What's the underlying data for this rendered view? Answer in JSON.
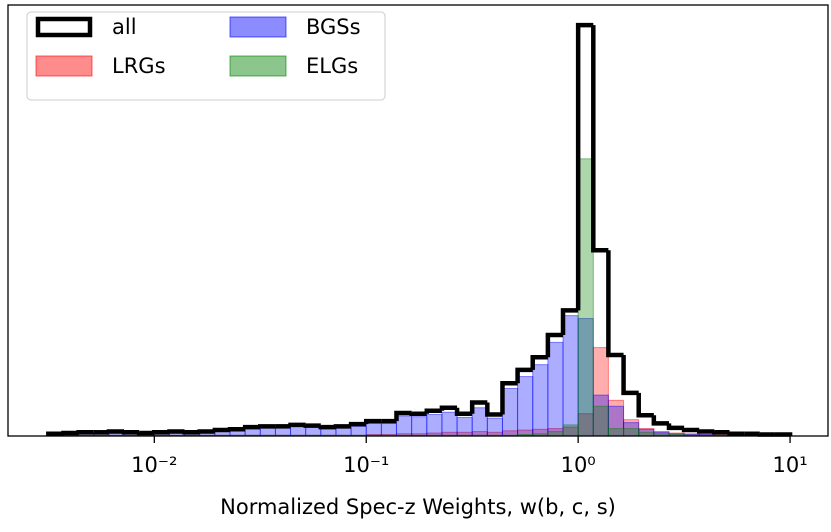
{
  "chart_data": {
    "type": "histogram",
    "log_x": true,
    "xlabel": "Normalized Spec-z Weights, w(b, c, s)",
    "xlim": [
      0.00204,
      15.1
    ],
    "ylim": [
      0,
      5.8
    ],
    "xticks": [
      {
        "value": 0.01,
        "label": "10⁻²"
      },
      {
        "value": 0.1,
        "label": "10⁻¹"
      },
      {
        "value": 1,
        "label": "10⁰"
      },
      {
        "value": 10,
        "label": "10¹"
      }
    ],
    "legend": "upper left",
    "bins": [
      0.003162,
      0.003728,
      0.004394,
      0.005179,
      0.006105,
      0.007197,
      0.008483,
      0.01,
      0.01179,
      0.01389,
      0.01638,
      0.01931,
      0.02276,
      0.02683,
      0.03162,
      0.03728,
      0.04394,
      0.05179,
      0.06105,
      0.07197,
      0.08483,
      0.1,
      0.1179,
      0.1389,
      0.1638,
      0.1931,
      0.2276,
      0.2683,
      0.3162,
      0.3728,
      0.4394,
      0.5179,
      0.6105,
      0.7197,
      0.8483,
      1,
      1.179,
      1.389,
      1.638,
      1.931,
      2.276,
      2.683,
      3.162,
      3.728,
      4.394,
      5.179,
      6.105,
      7.197,
      8.483,
      10
    ],
    "series": [
      {
        "name": "all",
        "color": "#000000",
        "filled": false,
        "values": [
          0.03,
          0.04,
          0.05,
          0.05,
          0.06,
          0.05,
          0.04,
          0.05,
          0.06,
          0.05,
          0.06,
          0.08,
          0.09,
          0.12,
          0.13,
          0.13,
          0.15,
          0.14,
          0.12,
          0.13,
          0.16,
          0.2,
          0.2,
          0.31,
          0.3,
          0.34,
          0.38,
          0.3,
          0.45,
          0.29,
          0.71,
          0.89,
          1.06,
          1.36,
          1.69,
          5.53,
          2.5,
          1.09,
          0.58,
          0.28,
          0.17,
          0.11,
          0.08,
          0.06,
          0.05,
          0.03,
          0.03,
          0.02,
          0.02
        ]
      },
      {
        "name": "LRGs",
        "color": "#ff0000",
        "filled": true,
        "values": [
          0.01,
          0.01,
          0.01,
          0.01,
          0.01,
          0.01,
          0.01,
          0.01,
          0.01,
          0.01,
          0.01,
          0.01,
          0.01,
          0.01,
          0.01,
          0.01,
          0.01,
          0.01,
          0.01,
          0.01,
          0.01,
          0.02,
          0.02,
          0.03,
          0.03,
          0.04,
          0.05,
          0.05,
          0.06,
          0.05,
          0.07,
          0.08,
          0.09,
          0.1,
          0.12,
          0.3,
          1.19,
          0.48,
          0.22,
          0.1,
          0.06,
          0.04,
          0.03,
          0.02,
          0.02,
          0.01,
          0.01,
          0.01,
          0.01
        ]
      },
      {
        "name": "BGSs",
        "color": "#0000ff",
        "filled": true,
        "values": [
          0.02,
          0.03,
          0.04,
          0.04,
          0.05,
          0.04,
          0.03,
          0.04,
          0.05,
          0.04,
          0.05,
          0.07,
          0.08,
          0.1,
          0.11,
          0.11,
          0.13,
          0.12,
          0.1,
          0.11,
          0.13,
          0.17,
          0.17,
          0.27,
          0.26,
          0.29,
          0.32,
          0.25,
          0.38,
          0.24,
          0.64,
          0.8,
          0.96,
          1.26,
          1.62,
          1.58,
          0.55,
          0.4,
          0.18,
          0.09,
          0.05,
          0.03,
          0.02,
          0.02,
          0.01,
          0.01,
          0.01,
          0.01,
          0.01
        ]
      },
      {
        "name": "ELGs",
        "color": "#008000",
        "filled": true,
        "values": [
          0.01,
          0.01,
          0.01,
          0.01,
          0.01,
          0.01,
          0.01,
          0.01,
          0.01,
          0.01,
          0.01,
          0.01,
          0.01,
          0.01,
          0.01,
          0.01,
          0.01,
          0.01,
          0.01,
          0.01,
          0.01,
          0.01,
          0.01,
          0.01,
          0.01,
          0.01,
          0.01,
          0.01,
          0.01,
          0.01,
          0.01,
          0.02,
          0.03,
          0.06,
          0.15,
          3.73,
          0.4,
          0.1,
          0.1,
          0.05,
          0.03,
          0.02,
          0.01,
          0.01,
          0.01,
          0.01,
          0.01,
          0.01,
          0.01
        ]
      }
    ]
  }
}
